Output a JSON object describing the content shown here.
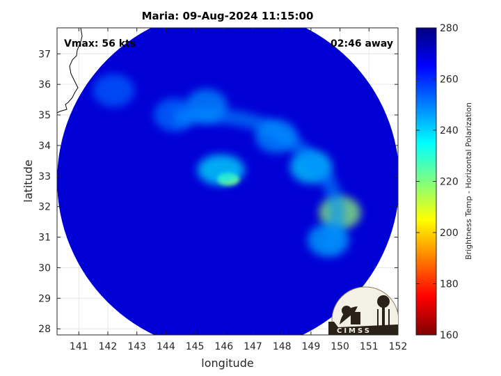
{
  "chart_data": {
    "type": "heatmap",
    "title": "Maria: 09-Aug-2024 11:15:00",
    "annotations": {
      "vmax": "Vmax: 56 kts",
      "time_away": "02:46 away"
    },
    "xlabel": "longitude",
    "ylabel": "latitude",
    "xlim": [
      140.25,
      152
    ],
    "ylim": [
      27.8,
      37.85
    ],
    "xticks": [
      141,
      142,
      143,
      144,
      145,
      146,
      147,
      148,
      149,
      150,
      151,
      152
    ],
    "yticks": [
      28,
      29,
      30,
      31,
      32,
      33,
      34,
      35,
      36,
      37
    ],
    "grid": true,
    "colorbar": {
      "label": "Brightness Temp - Horizontal Polarization",
      "range": [
        160,
        280
      ],
      "ticks": [
        160,
        180,
        200,
        220,
        240,
        260,
        280
      ],
      "colormap": "jet"
    },
    "swath": {
      "center_lon": 146.15,
      "center_lat": 32.85,
      "radius_deg_lon": 5.9
    },
    "background_value": 270,
    "features": [
      {
        "kind": "eye_core",
        "lon": 146.15,
        "lat": 32.9,
        "value": 215
      },
      {
        "kind": "eyewall",
        "lon": 145.9,
        "lat": 33.2,
        "value": 238
      },
      {
        "kind": "outer_band",
        "lon": 150.0,
        "lat": 31.8,
        "value": 218
      },
      {
        "kind": "outer_band",
        "lon": 149.0,
        "lat": 33.3,
        "value": 240
      },
      {
        "kind": "outer_band",
        "lon": 149.6,
        "lat": 30.9,
        "value": 245
      },
      {
        "kind": "outer_band",
        "lon": 147.8,
        "lat": 34.3,
        "value": 248
      },
      {
        "kind": "outer_band",
        "lon": 145.4,
        "lat": 35.3,
        "value": 248
      },
      {
        "kind": "outer_band",
        "lon": 144.3,
        "lat": 35.0,
        "value": 252
      },
      {
        "kind": "outer_band",
        "lon": 142.2,
        "lat": 35.8,
        "value": 254
      }
    ],
    "logo_text": "CIMSS"
  }
}
